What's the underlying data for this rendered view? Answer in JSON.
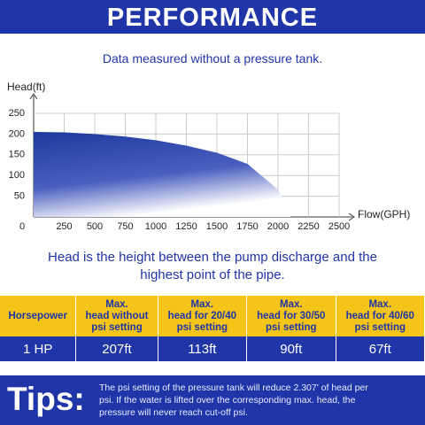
{
  "header": {
    "title": "PERFORMANCE",
    "subtitle": "Data measured without a pressure tank."
  },
  "chart_data": {
    "type": "area",
    "y_label": "Head(ft)",
    "x_label": "Flow(GPH)",
    "x": [
      0,
      250,
      500,
      750,
      1000,
      1250,
      1500,
      1750,
      2000,
      2100
    ],
    "values": [
      205,
      204,
      200,
      194,
      185,
      172,
      155,
      128,
      66,
      10
    ],
    "color": "#1d3a9e",
    "xlim": [
      0,
      2500
    ],
    "ylim": [
      0,
      250
    ],
    "xticks": [
      0,
      250,
      500,
      750,
      1000,
      1250,
      1500,
      1750,
      2000,
      2250,
      2500
    ],
    "yticks": [
      50,
      100,
      150,
      200,
      250
    ],
    "grid": true
  },
  "note": [
    "Head is the height between the pump discharge and the",
    "highest point of the pipe."
  ],
  "table": {
    "header": [
      [
        "Horsepower"
      ],
      [
        "Max.",
        "head without",
        "psi setting"
      ],
      [
        "Max.",
        "head for 20/40",
        "psi setting"
      ],
      [
        "Max.",
        "head for 30/50",
        "psi setting"
      ],
      [
        "Max.",
        "head for 40/60",
        "psi setting"
      ]
    ],
    "rows": [
      [
        "1 HP",
        "207ft",
        "113ft",
        "90ft",
        "67ft"
      ]
    ]
  },
  "tips": {
    "label": "Tips:",
    "lines": [
      "The psi setting of the pressure tank will reduce 2.307' of head per",
      "psi. If the water is lifted over the corresponding max. head, the",
      "pressure will never reach cut-off psi."
    ]
  }
}
